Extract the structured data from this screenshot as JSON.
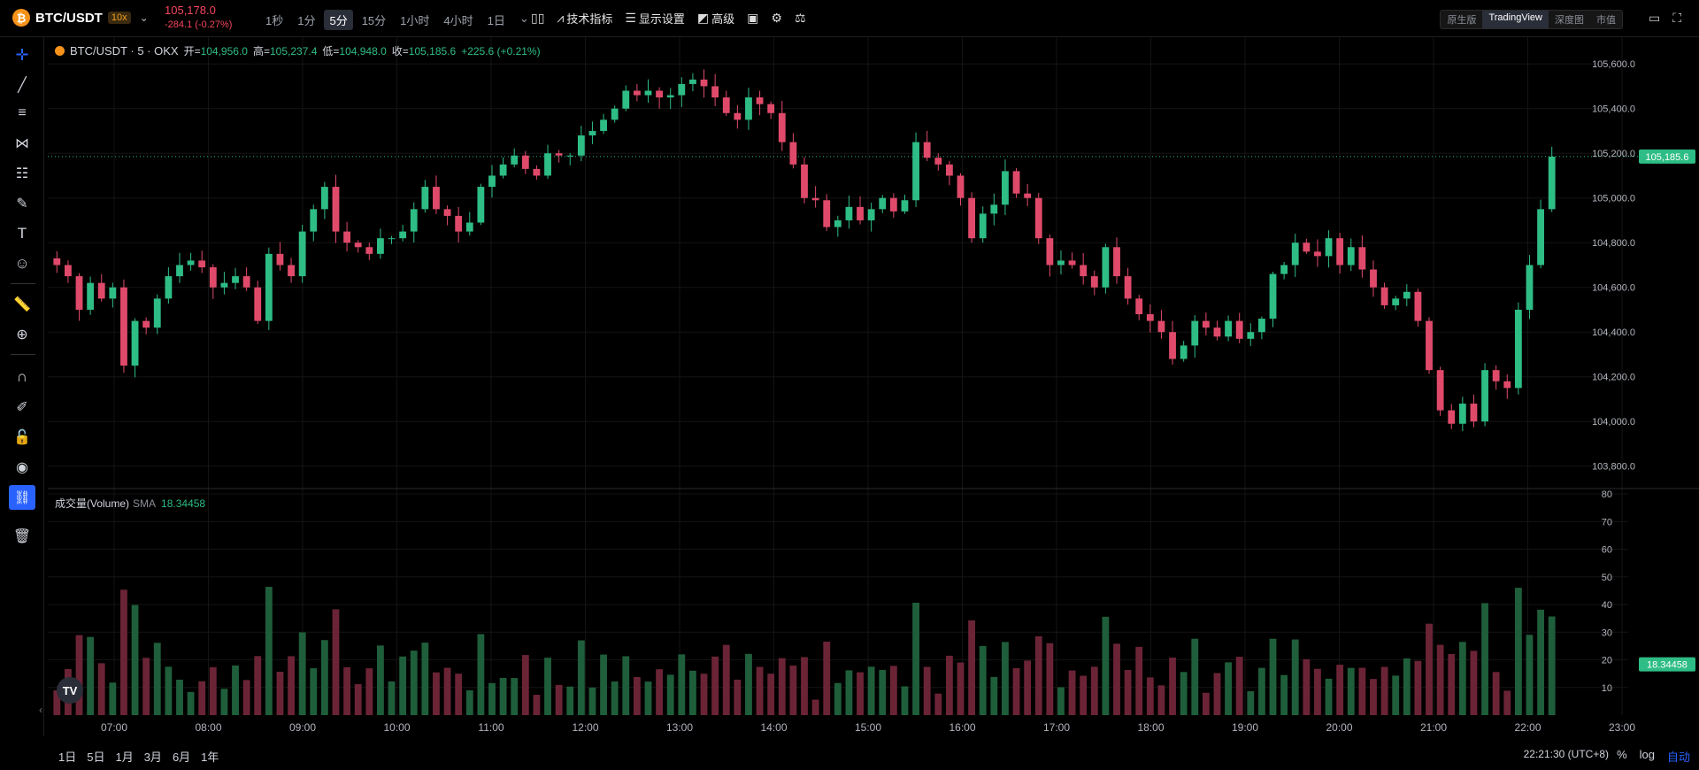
{
  "header": {
    "symbol": "BTC/USDT",
    "coin_glyph": "₿",
    "leverage": "10x",
    "last_price": "105,178.0",
    "change": "-284.1 (-0.27%)",
    "intervals": [
      {
        "label": "1秒",
        "active": false
      },
      {
        "label": "1分",
        "active": false
      },
      {
        "label": "5分",
        "active": true
      },
      {
        "label": "15分",
        "active": false
      },
      {
        "label": "1小时",
        "active": false
      },
      {
        "label": "4小时",
        "active": false
      },
      {
        "label": "1日",
        "active": false
      }
    ],
    "indicators_label": "技术指标",
    "display_label": "显示设置",
    "advanced_label": "高级",
    "views": [
      {
        "label": "原生版",
        "active": false
      },
      {
        "label": "TradingView",
        "active": true
      },
      {
        "label": "深度图",
        "active": false
      },
      {
        "label": "市值",
        "active": false
      }
    ]
  },
  "legend": {
    "title": "BTC/USDT · 5 · OKX",
    "open_label": "开=",
    "open": "104,956.0",
    "high_label": "高=",
    "high": "105,237.4",
    "low_label": "低=",
    "low": "104,948.0",
    "close_label": "收=",
    "close": "105,185.6",
    "change": "+225.6 (+0.21%)"
  },
  "volume_legend": {
    "title": "成交量(Volume)",
    "sma_label": "SMA",
    "sma_value": "18.34458"
  },
  "bottom": {
    "ranges": [
      "1日",
      "5日",
      "1月",
      "3月",
      "6月",
      "1年"
    ],
    "clock": "22:21:30 (UTC+8)",
    "percent": "%",
    "log": "log",
    "auto": "自动"
  },
  "colors": {
    "up": "#2ebd85",
    "down": "#e04a6a",
    "up_vol": "#1f5e3a",
    "down_vol": "#6b2436",
    "bg": "#000000",
    "grid": "#141414"
  },
  "chart_data": {
    "type": "candlestick",
    "title": "BTC/USDT · 5 · OKX",
    "x_ticks": [
      "07:00",
      "08:00",
      "09:00",
      "10:00",
      "11:00",
      "12:00",
      "13:00",
      "14:00",
      "15:00",
      "16:00",
      "17:00",
      "18:00",
      "19:00",
      "20:00",
      "21:00",
      "22:00",
      "23:00"
    ],
    "price_ticks": [
      "105,600.0",
      "105,400.0",
      "105,200.0",
      "105,000.0",
      "104,800.0",
      "104,600.0",
      "104,400.0",
      "104,200.0",
      "104,000.0",
      "103,800.0"
    ],
    "price_range": [
      103700,
      105680
    ],
    "current_price_label": "105,185.6",
    "current_price": 105185.6,
    "volume_ticks": [
      "80",
      "70",
      "60",
      "50",
      "40",
      "30",
      "20",
      "10"
    ],
    "volume_range": [
      0,
      80
    ],
    "volume_sma_label": "18.34458",
    "volume_sma": 18.34458,
    "closes": [
      104700,
      104650,
      104500,
      104620,
      104550,
      104600,
      104250,
      104450,
      104420,
      104550,
      104650,
      104700,
      104720,
      104690,
      104600,
      104620,
      104650,
      104600,
      104450,
      104750,
      104700,
      104650,
      104850,
      104950,
      105050,
      104850,
      104800,
      104780,
      104750,
      104820,
      104820,
      104850,
      104950,
      105050,
      104950,
      104920,
      104850,
      104890,
      105050,
      105100,
      105150,
      105190,
      105130,
      105100,
      105200,
      105190,
      105190,
      105280,
      105300,
      105350,
      105400,
      105480,
      105460,
      105480,
      105450,
      105460,
      105510,
      105530,
      105500,
      105450,
      105380,
      105350,
      105450,
      105420,
      105380,
      105250,
      105150,
      105000,
      104990,
      104870,
      104900,
      104960,
      104900,
      104950,
      105000,
      104940,
      104990,
      105250,
      105180,
      105150,
      105100,
      105000,
      104820,
      104930,
      104970,
      105120,
      105020,
      105000,
      104820,
      104700,
      104720,
      104700,
      104650,
      104600,
      104780,
      104650,
      104550,
      104480,
      104450,
      104400,
      104280,
      104340,
      104450,
      104420,
      104380,
      104450,
      104370,
      104400,
      104460,
      104660,
      104700,
      104800,
      104760,
      104740,
      104820,
      104700,
      104780,
      104680,
      104600,
      104520,
      104550,
      104580,
      104450,
      104230,
      104050,
      103990,
      104080,
      104000,
      104230,
      104180,
      104150,
      104500,
      104700,
      104950,
      105185
    ]
  }
}
